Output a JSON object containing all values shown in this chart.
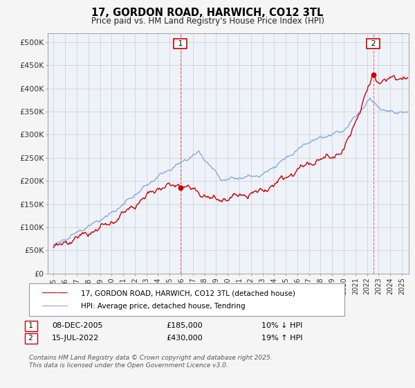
{
  "title": "17, GORDON ROAD, HARWICH, CO12 3TL",
  "subtitle": "Price paid vs. HM Land Registry's House Price Index (HPI)",
  "ylim": [
    0,
    520000
  ],
  "yticks": [
    0,
    50000,
    100000,
    150000,
    200000,
    250000,
    300000,
    350000,
    400000,
    450000,
    500000
  ],
  "ytick_labels": [
    "£0",
    "£50K",
    "£100K",
    "£150K",
    "£200K",
    "£250K",
    "£300K",
    "£350K",
    "£400K",
    "£450K",
    "£500K"
  ],
  "legend_entry1": "17, GORDON ROAD, HARWICH, CO12 3TL (detached house)",
  "legend_entry2": "HPI: Average price, detached house, Tendring",
  "annotation1_label": "1",
  "annotation1_date": "08-DEC-2005",
  "annotation1_price": "£185,000",
  "annotation1_hpi": "10% ↓ HPI",
  "annotation2_label": "2",
  "annotation2_date": "15-JUL-2022",
  "annotation2_price": "£430,000",
  "annotation2_hpi": "19% ↑ HPI",
  "footer": "Contains HM Land Registry data © Crown copyright and database right 2025.\nThis data is licensed under the Open Government Licence v3.0.",
  "price_paid_color": "#cc0000",
  "hpi_color": "#88aadd",
  "sale1_x": 2005.92,
  "sale1_y": 185000,
  "sale2_x": 2022.54,
  "sale2_y": 430000,
  "grid_color": "#cccccc",
  "plot_bg_color": "#eef3fa",
  "background_color": "#f5f5f5",
  "xlim_start": 1994.5,
  "xlim_end": 2025.6
}
